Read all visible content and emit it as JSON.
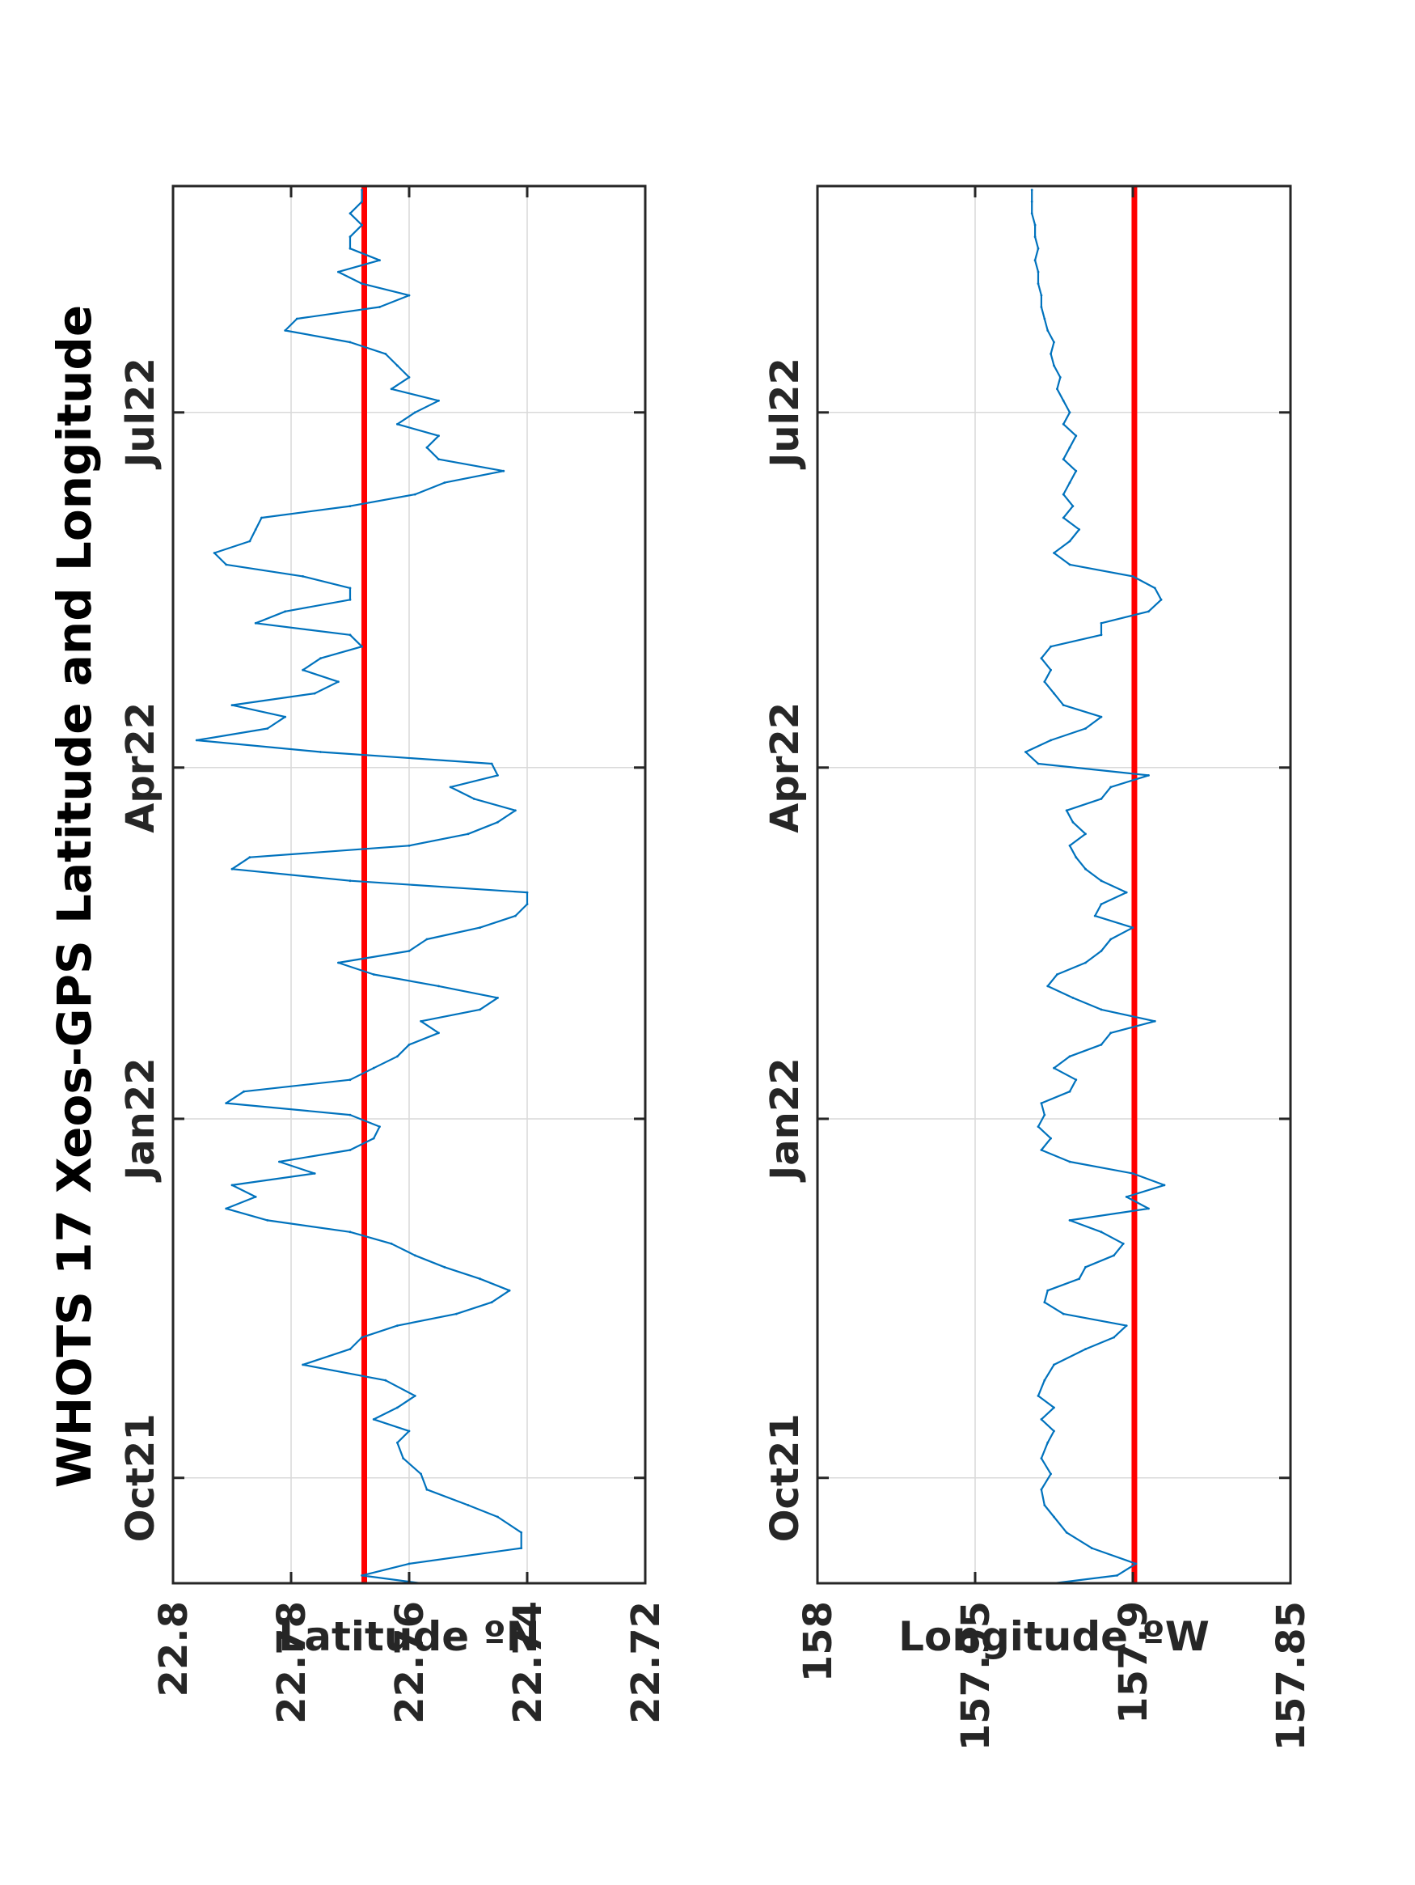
{
  "title": "WHOTS 17 Xeos-GPS Latitude and Longitude",
  "colors": {
    "series": "#0072BD",
    "reference": "#FF0000",
    "axes": "#262626",
    "grid": "#D9D9D9"
  },
  "chart_data": [
    {
      "type": "line",
      "ylabel": "Latitude ºN",
      "ylim": [
        22.72,
        22.8
      ],
      "yticks": [
        "22.8",
        "22.78",
        "22.76",
        "22.74",
        "22.72"
      ],
      "xlim": [
        "2021-09-04",
        "2022-08-28"
      ],
      "xticks": [
        {
          "date": "2021-10-01",
          "label": "Oct21"
        },
        {
          "date": "2022-01-01",
          "label": "Jan22"
        },
        {
          "date": "2022-04-01",
          "label": "Apr22"
        },
        {
          "date": "2022-07-01",
          "label": "Jul22"
        }
      ],
      "grid": true,
      "reference_line": 22.7676,
      "series": [
        {
          "x": [
            "2021-09-04",
            "2021-09-06",
            "2021-09-09",
            "2021-09-13",
            "2021-09-17",
            "2021-09-21",
            "2021-09-24",
            "2021-09-28",
            "2021-10-02",
            "2021-10-06",
            "2021-10-10",
            "2021-10-13",
            "2021-10-16",
            "2021-10-19",
            "2021-10-22",
            "2021-10-26",
            "2021-10-30",
            "2021-11-03",
            "2021-11-06",
            "2021-11-09",
            "2021-11-12",
            "2021-11-15",
            "2021-11-18",
            "2021-11-21",
            "2021-11-24",
            "2021-11-27",
            "2021-11-30",
            "2021-12-03",
            "2021-12-06",
            "2021-12-09",
            "2021-12-12",
            "2021-12-15",
            "2021-12-18",
            "2021-12-21",
            "2021-12-24",
            "2021-12-27",
            "2021-12-30",
            "2022-01-02",
            "2022-01-05",
            "2022-01-08",
            "2022-01-11",
            "2022-01-14",
            "2022-01-17",
            "2022-01-20",
            "2022-01-23",
            "2022-01-26",
            "2022-01-29",
            "2022-02-01",
            "2022-02-04",
            "2022-02-07",
            "2022-02-10",
            "2022-02-13",
            "2022-02-16",
            "2022-02-19",
            "2022-02-22",
            "2022-02-25",
            "2022-02-28",
            "2022-03-03",
            "2022-03-06",
            "2022-03-09",
            "2022-03-12",
            "2022-03-15",
            "2022-03-18",
            "2022-03-21",
            "2022-03-24",
            "2022-03-27",
            "2022-03-30",
            "2022-04-02",
            "2022-04-05",
            "2022-04-08",
            "2022-04-11",
            "2022-04-14",
            "2022-04-17",
            "2022-04-20",
            "2022-04-23",
            "2022-04-26",
            "2022-04-29",
            "2022-05-02",
            "2022-05-05",
            "2022-05-08",
            "2022-05-11",
            "2022-05-14",
            "2022-05-17",
            "2022-05-20",
            "2022-05-23",
            "2022-05-26",
            "2022-05-29",
            "2022-06-01",
            "2022-06-04",
            "2022-06-07",
            "2022-06-10",
            "2022-06-13",
            "2022-06-16",
            "2022-06-19",
            "2022-06-22",
            "2022-06-25",
            "2022-06-28",
            "2022-07-01",
            "2022-07-04",
            "2022-07-07",
            "2022-07-10",
            "2022-07-13",
            "2022-07-16",
            "2022-07-19",
            "2022-07-22",
            "2022-07-25",
            "2022-07-28",
            "2022-07-31",
            "2022-08-03",
            "2022-08-06",
            "2022-08-09",
            "2022-08-12",
            "2022-08-15",
            "2022-08-18",
            "2022-08-21",
            "2022-08-24",
            "2022-08-27"
          ],
          "y": [
            22.758,
            22.768,
            22.76,
            22.741,
            22.741,
            22.745,
            22.75,
            22.757,
            22.758,
            22.761,
            22.762,
            22.76,
            22.766,
            22.762,
            22.759,
            22.764,
            22.778,
            22.77,
            22.768,
            22.762,
            22.752,
            22.746,
            22.743,
            22.748,
            22.754,
            22.759,
            22.763,
            22.77,
            22.784,
            22.791,
            22.786,
            22.79,
            22.776,
            22.782,
            22.77,
            22.766,
            22.765,
            22.77,
            22.791,
            22.788,
            22.77,
            22.766,
            22.762,
            22.76,
            22.755,
            22.758,
            22.748,
            22.745,
            22.755,
            22.766,
            22.772,
            22.76,
            22.757,
            22.748,
            22.742,
            22.74,
            22.74,
            22.77,
            22.79,
            22.787,
            22.76,
            22.75,
            22.745,
            22.742,
            22.749,
            22.753,
            22.745,
            22.746,
            22.775,
            22.796,
            22.784,
            22.781,
            22.79,
            22.776,
            22.772,
            22.778,
            22.775,
            22.768,
            22.77,
            22.786,
            22.781,
            22.77,
            22.77,
            22.778,
            22.791,
            22.793,
            22.787,
            22.786,
            22.785,
            22.77,
            22.759,
            22.754,
            22.744,
            22.755,
            22.757,
            22.755,
            22.762,
            22.759,
            22.755,
            22.763,
            22.76,
            22.762,
            22.764,
            22.77,
            22.781,
            22.779,
            22.765,
            22.76,
            22.768,
            22.772,
            22.765,
            22.77,
            22.77,
            22.768,
            22.77,
            22.768,
            22.768
          ]
        }
      ]
    },
    {
      "type": "line",
      "ylabel": "Longitude ºW",
      "ylim": [
        157.85,
        158
      ],
      "yticks": [
        "158",
        "157.95",
        "157.9",
        "157.85"
      ],
      "xlim": [
        "2021-09-04",
        "2022-08-28"
      ],
      "xticks": [
        {
          "date": "2021-10-01",
          "label": "Oct21"
        },
        {
          "date": "2022-01-01",
          "label": "Jan22"
        },
        {
          "date": "2022-04-01",
          "label": "Apr22"
        },
        {
          "date": "2022-07-01",
          "label": "Jul22"
        }
      ],
      "grid": true,
      "reference_line": 157.8995,
      "series": [
        {
          "x": [
            "2021-09-04",
            "2021-09-06",
            "2021-09-09",
            "2021-09-13",
            "2021-09-17",
            "2021-09-21",
            "2021-09-24",
            "2021-09-28",
            "2021-10-02",
            "2021-10-06",
            "2021-10-10",
            "2021-10-13",
            "2021-10-16",
            "2021-10-19",
            "2021-10-22",
            "2021-10-26",
            "2021-10-30",
            "2021-11-03",
            "2021-11-06",
            "2021-11-09",
            "2021-11-12",
            "2021-11-15",
            "2021-11-18",
            "2021-11-21",
            "2021-11-24",
            "2021-11-27",
            "2021-11-30",
            "2021-12-03",
            "2021-12-06",
            "2021-12-09",
            "2021-12-12",
            "2021-12-15",
            "2021-12-18",
            "2021-12-21",
            "2021-12-24",
            "2021-12-27",
            "2021-12-30",
            "2022-01-02",
            "2022-01-05",
            "2022-01-08",
            "2022-01-11",
            "2022-01-14",
            "2022-01-17",
            "2022-01-20",
            "2022-01-23",
            "2022-01-26",
            "2022-01-29",
            "2022-02-01",
            "2022-02-04",
            "2022-02-07",
            "2022-02-10",
            "2022-02-13",
            "2022-02-16",
            "2022-02-19",
            "2022-02-22",
            "2022-02-25",
            "2022-02-28",
            "2022-03-03",
            "2022-03-06",
            "2022-03-09",
            "2022-03-12",
            "2022-03-15",
            "2022-03-18",
            "2022-03-21",
            "2022-03-24",
            "2022-03-27",
            "2022-03-30",
            "2022-04-02",
            "2022-04-05",
            "2022-04-08",
            "2022-04-11",
            "2022-04-14",
            "2022-04-17",
            "2022-04-20",
            "2022-04-23",
            "2022-04-26",
            "2022-04-29",
            "2022-05-02",
            "2022-05-05",
            "2022-05-08",
            "2022-05-11",
            "2022-05-14",
            "2022-05-17",
            "2022-05-20",
            "2022-05-23",
            "2022-05-26",
            "2022-05-29",
            "2022-06-01",
            "2022-06-04",
            "2022-06-07",
            "2022-06-10",
            "2022-06-13",
            "2022-06-16",
            "2022-06-19",
            "2022-06-22",
            "2022-06-25",
            "2022-06-28",
            "2022-07-01",
            "2022-07-04",
            "2022-07-07",
            "2022-07-10",
            "2022-07-13",
            "2022-07-16",
            "2022-07-19",
            "2022-07-22",
            "2022-07-25",
            "2022-07-28",
            "2022-07-31",
            "2022-08-03",
            "2022-08-06",
            "2022-08-09",
            "2022-08-12",
            "2022-08-15",
            "2022-08-18",
            "2022-08-21",
            "2022-08-24",
            "2022-08-27"
          ],
          "y": [
            157.925,
            157.905,
            157.899,
            157.913,
            157.921,
            157.925,
            157.928,
            157.929,
            157.926,
            157.929,
            157.927,
            157.925,
            157.929,
            157.925,
            157.93,
            157.928,
            157.925,
            157.915,
            157.906,
            157.902,
            157.922,
            157.928,
            157.927,
            157.917,
            157.915,
            157.906,
            157.903,
            157.91,
            157.92,
            157.895,
            157.902,
            157.89,
            157.9,
            157.92,
            157.929,
            157.926,
            157.93,
            157.928,
            157.929,
            157.92,
            157.918,
            157.925,
            157.92,
            157.91,
            157.907,
            157.893,
            157.91,
            157.919,
            157.927,
            157.924,
            157.915,
            157.91,
            157.907,
            157.9,
            157.912,
            157.91,
            157.902,
            157.91,
            157.915,
            157.918,
            157.92,
            157.915,
            157.919,
            157.921,
            157.91,
            157.907,
            157.895,
            157.93,
            157.934,
            157.926,
            157.915,
            157.91,
            157.922,
            157.925,
            157.928,
            157.926,
            157.929,
            157.926,
            157.91,
            157.91,
            157.895,
            157.891,
            157.893,
            157.9,
            157.92,
            157.925,
            157.92,
            157.917,
            157.922,
            157.919,
            157.922,
            157.92,
            157.918,
            157.922,
            157.92,
            157.918,
            157.922,
            157.92,
            157.922,
            157.924,
            157.923,
            157.925,
            157.926,
            157.925,
            157.927,
            157.928,
            157.929,
            157.929,
            157.93,
            157.93,
            157.931,
            157.93,
            157.931,
            157.931,
            157.932,
            157.932,
            157.932
          ]
        }
      ]
    }
  ]
}
